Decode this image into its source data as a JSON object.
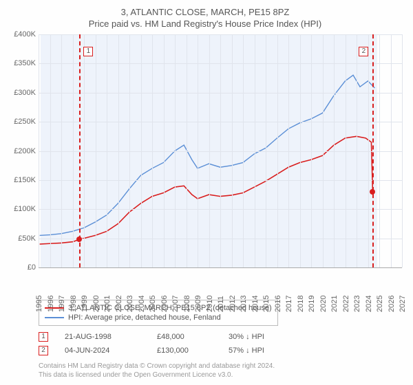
{
  "title": "3, ATLANTIC CLOSE, MARCH, PE15 8PZ",
  "subtitle": "Price paid vs. HM Land Registry's House Price Index (HPI)",
  "chart": {
    "type": "line",
    "background_color": "#fefefe",
    "plot_bg_color": "#eef3fb",
    "grid_color": "#e0e4ec",
    "y": {
      "min": 0,
      "max": 400000,
      "step": 50000,
      "labels": [
        "£0",
        "£50K",
        "£100K",
        "£150K",
        "£200K",
        "£250K",
        "£300K",
        "£350K",
        "£400K"
      ]
    },
    "x": {
      "min": 1995,
      "max": 2027,
      "step": 1,
      "labels": [
        "1995",
        "1996",
        "1997",
        "1998",
        "1999",
        "2000",
        "2001",
        "2002",
        "2003",
        "2004",
        "2005",
        "2006",
        "2007",
        "2008",
        "2009",
        "2010",
        "2011",
        "2012",
        "2013",
        "2014",
        "2015",
        "2016",
        "2017",
        "2018",
        "2019",
        "2020",
        "2021",
        "2022",
        "2023",
        "2024",
        "2025",
        "2026",
        "2027"
      ],
      "shade_from": 1995.2,
      "shade_to": 2024.8
    },
    "series": [
      {
        "name": "property",
        "label": "3, ATLANTIC CLOSE, MARCH, PE15 8PZ (detached house)",
        "color": "#d91e1e",
        "line_width": 1.6,
        "points": [
          [
            1995.1,
            40000
          ],
          [
            1996,
            41000
          ],
          [
            1997,
            42000
          ],
          [
            1998,
            44000
          ],
          [
            1998.6,
            48000
          ],
          [
            1999,
            50000
          ],
          [
            2000,
            55000
          ],
          [
            2001,
            62000
          ],
          [
            2002,
            75000
          ],
          [
            2003,
            95000
          ],
          [
            2004,
            110000
          ],
          [
            2005,
            122000
          ],
          [
            2006,
            128000
          ],
          [
            2007,
            138000
          ],
          [
            2007.8,
            140000
          ],
          [
            2008.5,
            125000
          ],
          [
            2009,
            118000
          ],
          [
            2010,
            125000
          ],
          [
            2011,
            122000
          ],
          [
            2012,
            124000
          ],
          [
            2013,
            128000
          ],
          [
            2014,
            138000
          ],
          [
            2015,
            148000
          ],
          [
            2016,
            160000
          ],
          [
            2017,
            172000
          ],
          [
            2018,
            180000
          ],
          [
            2019,
            185000
          ],
          [
            2020,
            192000
          ],
          [
            2021,
            210000
          ],
          [
            2022,
            222000
          ],
          [
            2023,
            225000
          ],
          [
            2023.8,
            222000
          ],
          [
            2024.3,
            215000
          ],
          [
            2024.42,
            130000
          ]
        ]
      },
      {
        "name": "hpi",
        "label": "HPI: Average price, detached house, Fenland",
        "color": "#5b8fd6",
        "line_width": 1.4,
        "points": [
          [
            1995.1,
            55000
          ],
          [
            1996,
            56000
          ],
          [
            1997,
            58000
          ],
          [
            1998,
            62000
          ],
          [
            1999,
            68000
          ],
          [
            2000,
            78000
          ],
          [
            2001,
            90000
          ],
          [
            2002,
            110000
          ],
          [
            2003,
            135000
          ],
          [
            2004,
            158000
          ],
          [
            2005,
            170000
          ],
          [
            2006,
            180000
          ],
          [
            2007,
            200000
          ],
          [
            2007.8,
            210000
          ],
          [
            2008.5,
            185000
          ],
          [
            2009,
            170000
          ],
          [
            2010,
            178000
          ],
          [
            2011,
            172000
          ],
          [
            2012,
            175000
          ],
          [
            2013,
            180000
          ],
          [
            2014,
            195000
          ],
          [
            2015,
            205000
          ],
          [
            2016,
            222000
          ],
          [
            2017,
            238000
          ],
          [
            2018,
            248000
          ],
          [
            2019,
            255000
          ],
          [
            2020,
            265000
          ],
          [
            2021,
            295000
          ],
          [
            2022,
            320000
          ],
          [
            2022.7,
            330000
          ],
          [
            2023.3,
            310000
          ],
          [
            2024,
            320000
          ],
          [
            2024.6,
            308000
          ]
        ]
      }
    ],
    "markers": [
      {
        "id": "1",
        "year": 1998.6,
        "value": 48000,
        "color": "#d91e1e",
        "date": "21-AUG-1998",
        "price": "£48,000",
        "pct": "30% ↓ HPI"
      },
      {
        "id": "2",
        "year": 2024.42,
        "value": 130000,
        "color": "#d91e1e",
        "date": "04-JUN-2024",
        "price": "£130,000",
        "pct": "57% ↓ HPI"
      }
    ]
  },
  "footer": {
    "line1": "Contains HM Land Registry data © Crown copyright and database right 2024.",
    "line2": "This data is licensed under the Open Government Licence v3.0."
  }
}
